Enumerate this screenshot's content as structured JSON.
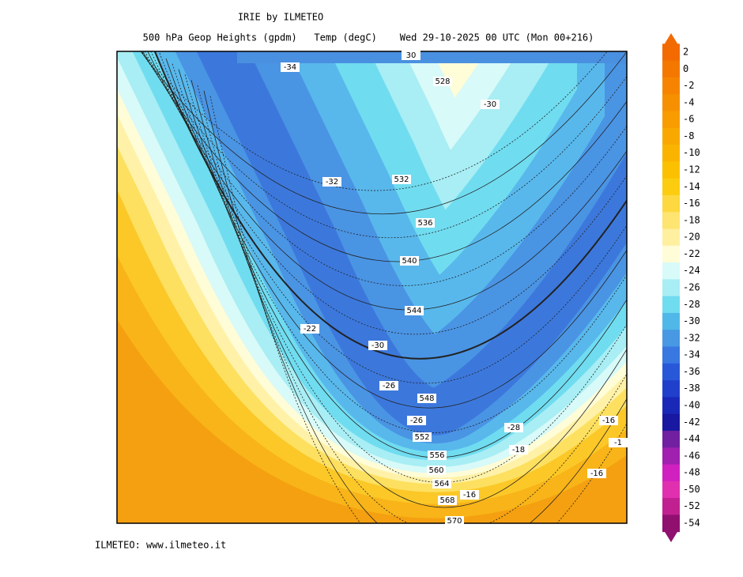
{
  "header": {
    "title": "IRIE by ILMETEO",
    "subtitle": "500 hPa Geop Heights (gpdm)   Temp (degC)    Wed 29-10-2025 00 UTC (Mon 00+216)"
  },
  "footer": "ILMETEO: www.ilmeteo.it",
  "contour_labels": [
    "-34",
    "30",
    "528",
    "-30",
    "-32",
    "532",
    "536",
    "540",
    "544",
    "-22",
    "-30",
    "-26",
    "548",
    "-26",
    "552",
    "-28",
    "-16",
    "-1",
    "556",
    "-18",
    "560",
    "-16",
    "564",
    "568",
    "-16",
    "570"
  ],
  "colorbar": {
    "labels": [
      "2",
      "0",
      "-2",
      "-4",
      "-6",
      "-8",
      "-10",
      "-12",
      "-14",
      "-16",
      "-18",
      "-20",
      "-22",
      "-24",
      "-26",
      "-28",
      "-30",
      "-32",
      "-34",
      "-36",
      "-38",
      "-40",
      "-42",
      "-44",
      "-46",
      "-48",
      "-50",
      "-52",
      "-54"
    ],
    "colors": [
      "#f26a00",
      "#f47800",
      "#f68400",
      "#f79000",
      "#f89c00",
      "#f9a800",
      "#fab400",
      "#fbc000",
      "#fccc10",
      "#fdd840",
      "#fee470",
      "#fff0a0",
      "#fffcd8",
      "#d8faf8",
      "#a8eef4",
      "#70dcf0",
      "#50b8e8",
      "#4898e4",
      "#3878e0",
      "#2858d8",
      "#2040cc",
      "#1a28b8",
      "#1818a0",
      "#7020a0",
      "#a020b0",
      "#d020c0",
      "#e030b0",
      "#c02090",
      "#901070"
    ]
  }
}
